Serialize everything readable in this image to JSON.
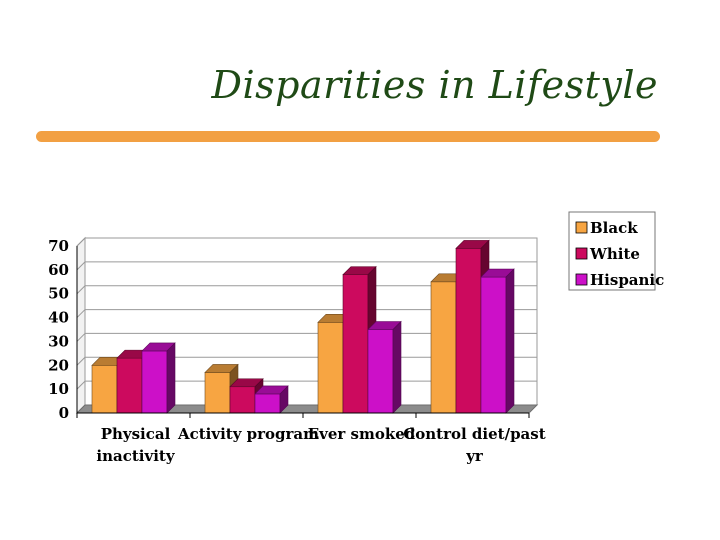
{
  "slide": {
    "title": "Disparities in Lifestyle"
  },
  "colors": {
    "accent_rule": "#f2a043",
    "title": "#1f4a16"
  },
  "chart_data": {
    "type": "bar",
    "style": "3d-clustered",
    "categories": [
      [
        "Physical",
        "inactivity"
      ],
      [
        "Activity program"
      ],
      [
        "Ever smoked"
      ],
      [
        "Control diet/past",
        "yr"
      ]
    ],
    "series": [
      {
        "name": "Black",
        "color": "#f7a542",
        "values": [
          20,
          17,
          38,
          55
        ]
      },
      {
        "name": "White",
        "color": "#cc0a5e",
        "values": [
          23,
          11,
          58,
          69
        ]
      },
      {
        "name": "Hispanic",
        "color": "#cc10c8",
        "values": [
          26,
          8,
          35,
          57
        ]
      }
    ],
    "ylim": [
      0,
      70
    ],
    "yticks": [
      "0",
      "10",
      "20",
      "30",
      "40",
      "50",
      "60",
      "70"
    ],
    "grid": true,
    "legend": "right",
    "title": "",
    "xlabel": "",
    "ylabel": ""
  }
}
